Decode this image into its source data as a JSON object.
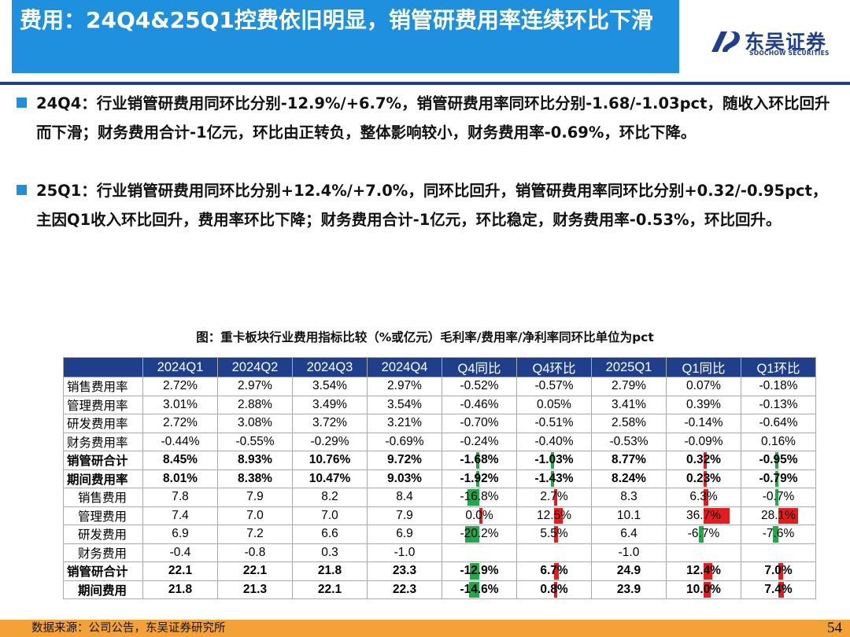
{
  "title": "费用：24Q4&25Q1控费依旧明显，销管研费用率连续环比下滑",
  "logo": {
    "cn": "东吴证券",
    "en": "SOOCHOW SECURITIES"
  },
  "bullets": [
    "24Q4：行业销管研费用同环比分别-12.9%/+6.7%，销管研费用率同环比分别-1.68/-1.03pct，随收入环比回升而下滑；财务费用合计-1亿元，环比由正转负，整体影响较小，财务费用率-0.69%，环比下降。",
    "25Q1：行业销管研费用同环比分别+12.4%/+7.0%，同环比回升，销管研费用率同环比分别+0.32/-0.95pct，主因Q1收入环比回升，费用率环比下降；财务费用合计-1亿元，环比稳定，财务费用率-0.53%，环比回升。"
  ],
  "caption": "图：重卡板块行业费用指标比较（%或亿元）毛利率/费用率/净利率同环比单位为pct",
  "colors": {
    "positive": "#e31d1d",
    "negative": "#21a84a",
    "header": "#1f3f8c",
    "accent": "#1e90dd"
  },
  "table": {
    "headers": [
      "",
      "2024Q1",
      "2024Q2",
      "2024Q3",
      "2024Q4",
      "Q4同比",
      "Q4环比",
      "2025Q1",
      "Q1同比",
      "Q1环比"
    ],
    "rows": [
      {
        "cells": [
          "销售费用率",
          "2.72%",
          "2.97%",
          "3.54%",
          "2.97%",
          "-0.52%",
          "-0.57%",
          "2.79%",
          "0.07%",
          "-0.18%"
        ],
        "bold": false,
        "indent": false,
        "bars": false
      },
      {
        "cells": [
          "管理费用率",
          "3.01%",
          "2.88%",
          "3.49%",
          "3.54%",
          "-0.46%",
          "0.05%",
          "3.41%",
          "0.39%",
          "-0.13%"
        ],
        "bold": false,
        "indent": false,
        "bars": false
      },
      {
        "cells": [
          "研发费用率",
          "2.72%",
          "3.08%",
          "3.72%",
          "3.21%",
          "-0.70%",
          "-0.51%",
          "2.58%",
          "-0.14%",
          "-0.64%"
        ],
        "bold": false,
        "indent": false,
        "bars": false
      },
      {
        "cells": [
          "财务费用率",
          "-0.44%",
          "-0.55%",
          "-0.29%",
          "-0.69%",
          "-0.24%",
          "-0.40%",
          "-0.53%",
          "-0.09%",
          "0.16%"
        ],
        "bold": false,
        "indent": false,
        "bars": false
      },
      {
        "cells": [
          "销管研合计",
          "8.45%",
          "8.93%",
          "10.76%",
          "9.72%",
          "-1.68%",
          "-1.03%",
          "8.77%",
          "0.32%",
          "-0.95%"
        ],
        "bold": true,
        "indent": false,
        "bars": true
      },
      {
        "cells": [
          "期间费用率",
          "8.01%",
          "8.38%",
          "10.47%",
          "9.03%",
          "-1.92%",
          "-1.43%",
          "8.24%",
          "0.23%",
          "-0.79%"
        ],
        "bold": true,
        "indent": false,
        "bars": true
      },
      {
        "cells": [
          "销售费用",
          "7.8",
          "7.9",
          "8.2",
          "8.4",
          "-16.8%",
          "2.7%",
          "8.3",
          "6.3%",
          "-0.7%"
        ],
        "bold": false,
        "indent": true,
        "bars": true
      },
      {
        "cells": [
          "管理费用",
          "7.4",
          "7.0",
          "7.0",
          "7.9",
          "0.0%",
          "12.5%",
          "10.1",
          "36.7%",
          "28.1%"
        ],
        "bold": false,
        "indent": true,
        "bars": true
      },
      {
        "cells": [
          "研发费用",
          "6.9",
          "7.2",
          "6.6",
          "6.9",
          "-20.2%",
          "5.5%",
          "6.4",
          "-6.7%",
          "-7.6%"
        ],
        "bold": false,
        "indent": true,
        "bars": true
      },
      {
        "cells": [
          "财务费用",
          "-0.4",
          "-0.8",
          "0.3",
          "-1.0",
          "",
          "",
          "-1.0",
          "",
          ""
        ],
        "bold": false,
        "indent": true,
        "bars": false
      },
      {
        "cells": [
          "销管研合计",
          "22.1",
          "22.1",
          "21.8",
          "23.3",
          "-12.9%",
          "6.7%",
          "24.9",
          "12.4%",
          "7.0%"
        ],
        "bold": true,
        "indent": false,
        "bars": true
      },
      {
        "cells": [
          "期间费用",
          "21.8",
          "21.3",
          "22.1",
          "22.3",
          "-14.6%",
          "0.8%",
          "23.9",
          "10.0%",
          "7.4%"
        ],
        "bold": true,
        "indent": true,
        "bars": true
      }
    ]
  },
  "footer": {
    "source": "数据来源：公司公告，东吴证券研究所",
    "page": "54"
  }
}
